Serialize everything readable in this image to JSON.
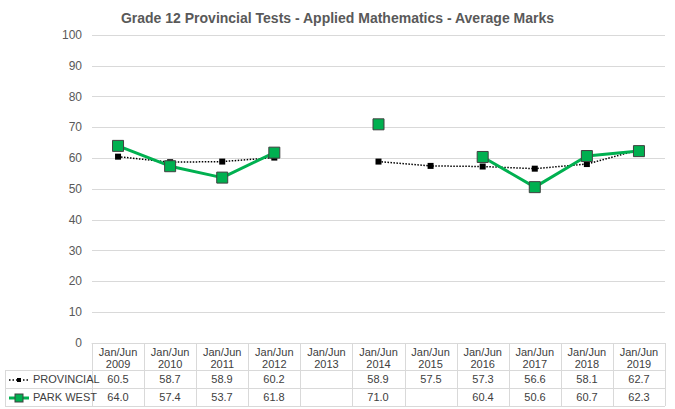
{
  "chart_data": {
    "type": "line",
    "title": "Grade 12 Provincial Tests - Applied Mathematics - Average Marks",
    "categories": [
      "Jan/Jun 2009",
      "Jan/Jun 2010",
      "Jan/Jun 2011",
      "Jan/Jun 2012",
      "Jan/Jun 2013",
      "Jan/Jun 2014",
      "Jan/Jun 2015",
      "Jan/Jun 2016",
      "Jan/Jun 2017",
      "Jan/Jun 2018",
      "Jan/Jun 2019"
    ],
    "series": [
      {
        "name": "PROVINCIAL",
        "color": "#000000",
        "marker": "square",
        "line_style": "dotted",
        "values": [
          60.5,
          58.7,
          58.9,
          60.2,
          null,
          58.9,
          57.5,
          57.3,
          56.6,
          58.1,
          62.7
        ],
        "value_labels": [
          "60.5",
          "58.7",
          "58.9",
          "60.2",
          null,
          "58.9",
          "57.5",
          "57.3",
          "56.6",
          "58.1",
          "62.7"
        ]
      },
      {
        "name": "PARK WEST",
        "color": "#00b050",
        "marker": "square",
        "line_style": "solid",
        "values": [
          64.0,
          57.4,
          53.7,
          61.8,
          null,
          71.0,
          null,
          60.4,
          50.6,
          60.7,
          62.3
        ],
        "value_labels": [
          "64.0",
          "57.4",
          "53.7",
          "61.8",
          null,
          "71.0",
          null,
          "60.4",
          "50.6",
          "60.7",
          "62.3"
        ]
      }
    ],
    "ylim": [
      0,
      100
    ],
    "yticks": [
      0,
      10,
      20,
      30,
      40,
      50,
      60,
      70,
      80,
      90,
      100
    ],
    "grid": true
  }
}
